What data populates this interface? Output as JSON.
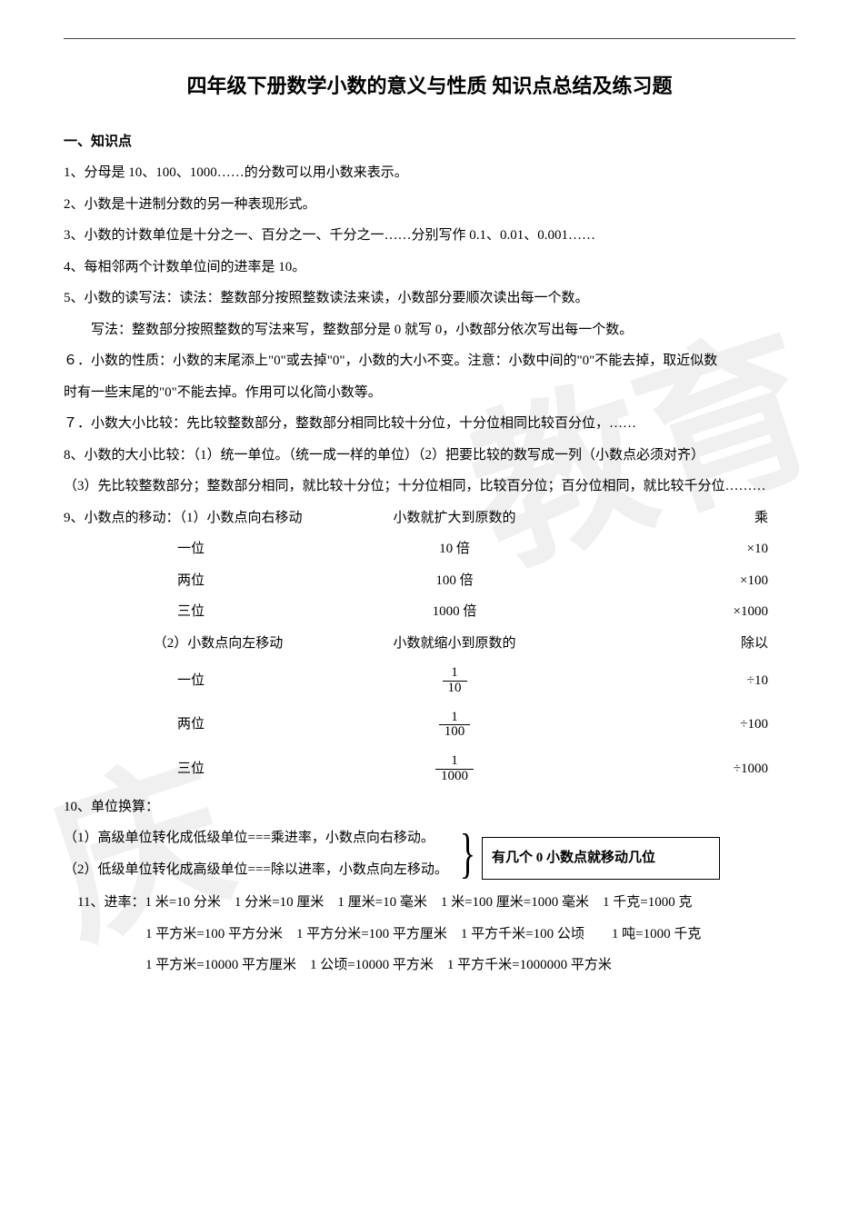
{
  "title": "四年级下册数学小数的意义与性质 知识点总结及练习题",
  "section1": "一、知识点",
  "p1": "1、分母是 10、100、1000……的分数可以用小数来表示。",
  "p2": "2、小数是十进制分数的另一种表现形式。",
  "p3": "3、小数的计数单位是十分之一、百分之一、千分之一……分别写作 0.1、0.01、0.001……",
  "p4": "4、每相邻两个计数单位间的进率是 10。",
  "p5": "5、小数的读写法：读法：整数部分按照整数读法来读，小数部分要顺次读出每一个数。",
  "p5b": "写法：整数部分按照整数的写法来写，整数部分是 0 就写 0，小数部分依次写出每一个数。",
  "p6a": "６．小数的性质：小数的末尾添上\"0\"或去掉\"0\"，小数的大小不变。注意：小数中间的\"0\"不能去掉，取近似数",
  "p6b": "时有一些末尾的\"0\"不能去掉。作用可以化简小数等。",
  "p7": "７．小数大小比较：先比较整数部分，整数部分相同比较十分位，十分位相同比较百分位，……",
  "p8": "8、小数的大小比较：（1）统一单位。（统一成一样的单位）（2）把要比较的数写成一列（小数点必须对齐）",
  "p8b": "（3）先比较整数部分；整数部分相同，就比较十分位；十分位相同，比较百分位；百分位相同，就比较千分位………",
  "p9header": "9、小数点的移动：（1）小数点向右移动",
  "p9mid": "小数就扩大到原数的",
  "p9op": "乘",
  "right_rows": [
    {
      "c1": "一位",
      "c2": "10 倍",
      "c3": "×10"
    },
    {
      "c1": "两位",
      "c2": "100 倍",
      "c3": "×100"
    },
    {
      "c1": "三位",
      "c2": "1000 倍",
      "c3": "×1000"
    }
  ],
  "p9header2": "（2）小数点向左移动",
  "p9mid2": "小数就缩小到原数的",
  "p9op2": "除以",
  "left_rows": [
    {
      "c1": "一位",
      "num": "1",
      "den": "10",
      "c3": "÷10"
    },
    {
      "c1": "两位",
      "num": "1",
      "den": "100",
      "c3": "÷100"
    },
    {
      "c1": "三位",
      "num": "1",
      "den": "1000",
      "c3": "÷1000"
    }
  ],
  "p10": "10、单位换算：",
  "p10a": "（1）高级单位转化成低级单位===乘进率，小数点向右移动。",
  "p10b": "（2）低级单位转化成高级单位===除以进率，小数点向左移动。",
  "tip": "有几个 0 小数点就移动几位",
  "p11": "11、进率：1 米=10 分米　1 分米=10 厘米　1 厘米=10 毫米　1 米=100 厘米=1000 毫米　1 千克=1000 克",
  "p11b": "1 平方米=100 平方分米　1 平方分米=100 平方厘米　1 平方千米=100 公顷　　1 吨=1000 千克",
  "p11c": "1 平方米=10000 平方厘米　1 公顷=10000 平方米　1 平方千米=1000000 平方米",
  "watermark1": "教育",
  "watermark2": "庆"
}
